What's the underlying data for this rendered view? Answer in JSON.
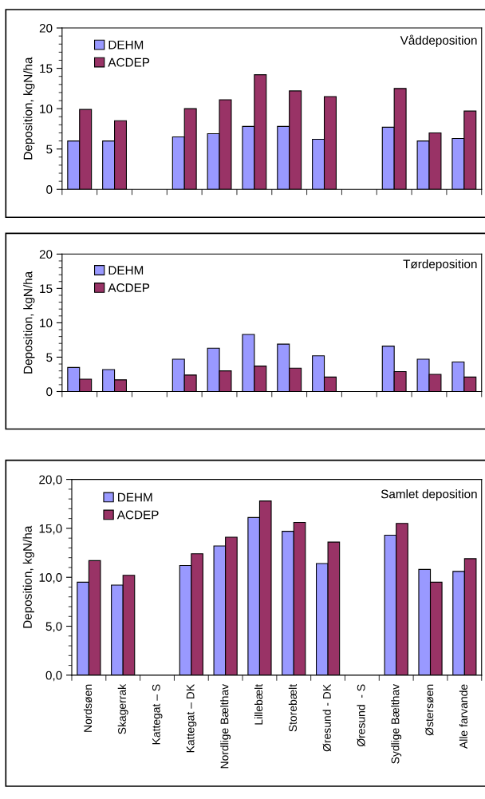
{
  "chart_data": [
    {
      "type": "bar",
      "title": "Våddeposition",
      "ylabel": "Deposition, kgN/ha",
      "categories": [
        null,
        null,
        null,
        null,
        null,
        null,
        null,
        null,
        null,
        null,
        null,
        null
      ],
      "series": [
        {
          "name": "DEHM",
          "color": "#9999ff",
          "values": [
            6.0,
            6.0,
            null,
            6.5,
            6.9,
            7.8,
            7.8,
            6.2,
            null,
            7.7,
            6.0,
            6.3
          ]
        },
        {
          "name": "ACDEP",
          "color": "#993366",
          "values": [
            9.9,
            8.5,
            null,
            10.0,
            11.1,
            14.2,
            12.2,
            11.5,
            null,
            12.5,
            7.0,
            9.7
          ]
        }
      ],
      "ylim": [
        0,
        20
      ],
      "yticks": [
        0,
        5,
        10,
        15,
        20
      ],
      "tick_labels": "y",
      "legend": "top left",
      "grid": false
    },
    {
      "type": "bar",
      "title": "Tørdeposition",
      "ylabel": "Deposition, kgN/ha",
      "categories": [
        null,
        null,
        null,
        null,
        null,
        null,
        null,
        null,
        null,
        null,
        null,
        null
      ],
      "series": [
        {
          "name": "DEHM",
          "color": "#9999ff",
          "values": [
            3.5,
            3.2,
            null,
            4.7,
            6.3,
            8.3,
            6.9,
            5.2,
            null,
            6.6,
            4.7,
            4.3
          ]
        },
        {
          "name": "ACDEP",
          "color": "#993366",
          "values": [
            1.8,
            1.7,
            null,
            2.4,
            3.0,
            3.7,
            3.4,
            2.1,
            null,
            2.9,
            2.5,
            2.1
          ]
        }
      ],
      "ylim": [
        0,
        20
      ],
      "yticks": [
        0,
        5,
        10,
        15,
        20
      ],
      "tick_labels": "y",
      "legend": "top left",
      "grid": false
    },
    {
      "type": "bar",
      "title": "Samlet deposition",
      "ylabel": "Deposition, kgN/ha",
      "categories": [
        "Nordsøen",
        "Skagerrak",
        "Kattegat – S",
        "Kattegat – DK",
        "Nordlige Bælthav",
        "Lillebælt",
        "Storebælt",
        "Øresund - DK",
        "Øresund  - S",
        "Sydlige Bælthav",
        "Østersøen",
        "Alle farvande"
      ],
      "series": [
        {
          "name": "DEHM",
          "color": "#9999ff",
          "values": [
            9.5,
            9.2,
            null,
            11.2,
            13.2,
            16.1,
            14.7,
            11.4,
            null,
            14.3,
            10.8,
            10.6
          ]
        },
        {
          "name": "ACDEP",
          "color": "#993366",
          "values": [
            11.7,
            10.2,
            null,
            12.4,
            14.1,
            17.8,
            15.6,
            13.6,
            null,
            15.5,
            9.5,
            11.9
          ]
        }
      ],
      "ylim": [
        0,
        20
      ],
      "yticks": [
        {
          "value": 0,
          "label": "0,0"
        },
        {
          "value": 5,
          "label": "5,0"
        },
        {
          "value": 10,
          "label": "10,0"
        },
        {
          "value": 15,
          "label": "15,0"
        },
        {
          "value": 20,
          "label": "20,0"
        }
      ],
      "legend": "top left",
      "grid": false
    }
  ]
}
